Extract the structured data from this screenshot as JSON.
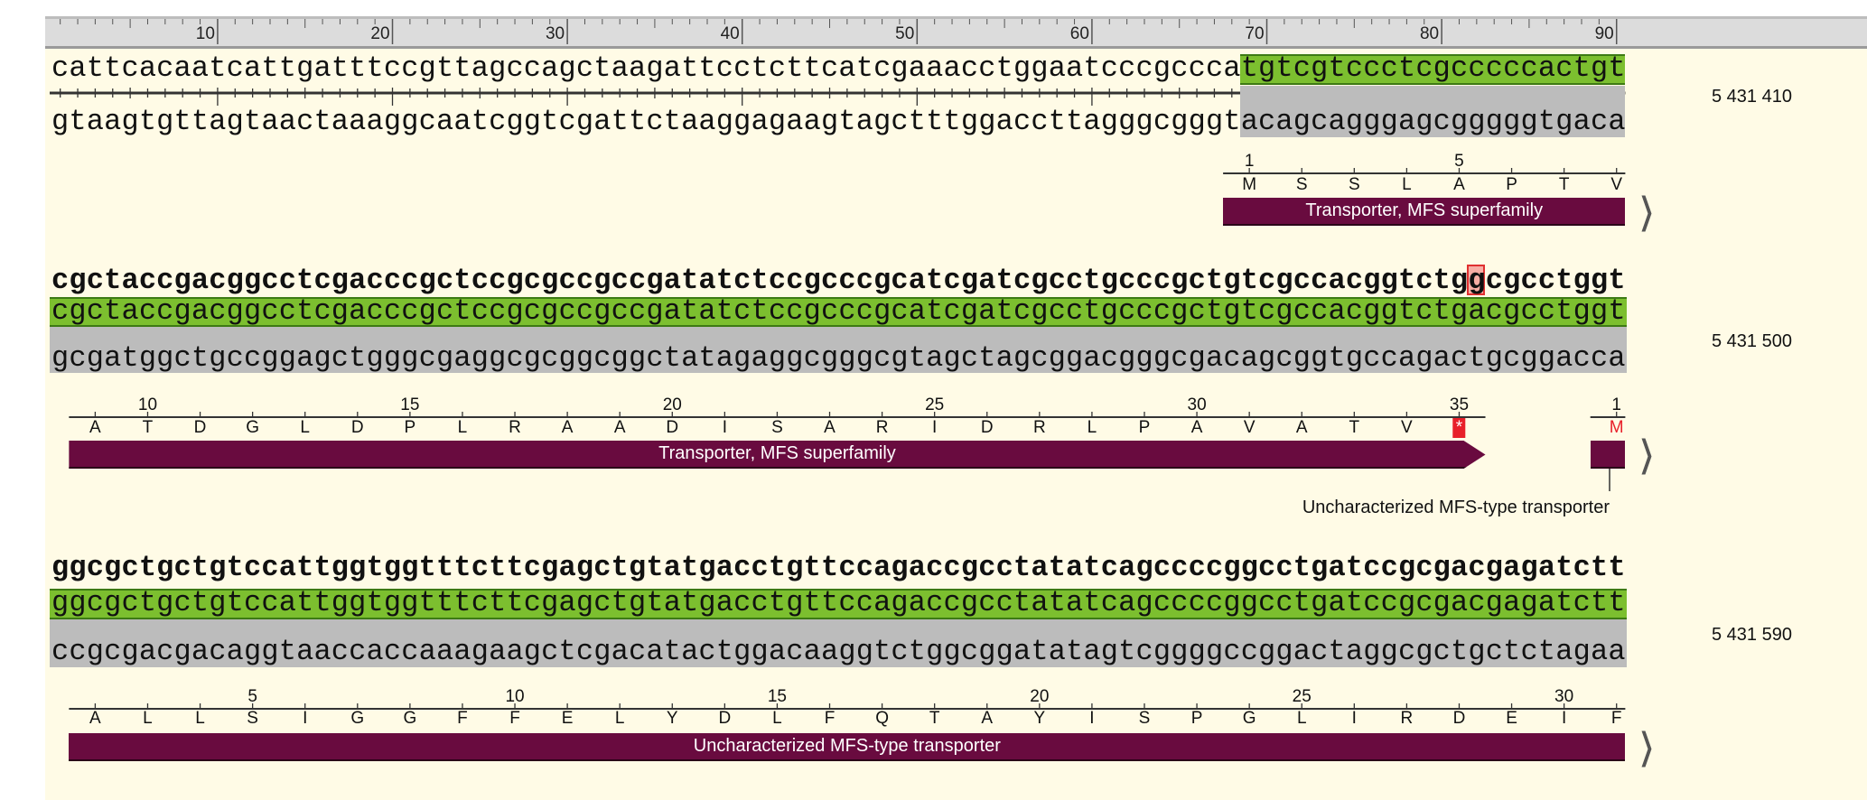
{
  "ruler": {
    "labels": [
      "10",
      "20",
      "30",
      "40",
      "50",
      "60",
      "70",
      "80",
      "90"
    ]
  },
  "colors": {
    "background": "#fffbe6",
    "aligned": "#7cbf2f",
    "reverse": "#bcbcbc",
    "feature": "#690b3f",
    "mismatch": "#f08080",
    "stop": "#e8202a"
  },
  "blocks": [
    {
      "top": "cattcacaatcattgatttccgttagccagctaagattcctcttcatcgaaacctggaatcccgcccatgtcgtccctcgcccccactgt",
      "aligned": "atgtcgtccctcgcccccactgt",
      "bottom": "gtaagtgttagtaactaaaggcaatcggtcgattctaaggagaagtagctttggaccttagggcgggtacagcagggagcgggggtgaca",
      "coord": "5 431 410",
      "tracks": [
        {
          "start_num": 1,
          "aa": [
            "M",
            "S",
            "S",
            "L",
            "A",
            "P",
            "T",
            "V"
          ],
          "feature": "Transporter, MFS superfamily"
        }
      ]
    },
    {
      "top": "cgctaccgacggcctcgacccgctccgcgccgccgatatctccgcccgcatcgatcgcctgcccgctgtcgccacggtctggcgcctggt",
      "aligned": "cgctaccgacggcctcgacccgctccgcgccgccgatatctccgcccgcatcgatcgcctgcccgctgtcgccacggtctgacgcctggt",
      "bottom": "gcgatggctgccggagctgggcgaggcgcggcggctatagaggcgggcgtagctagcggacgggcgacagcggtgccagactgcggacca",
      "coord": "5 431 500",
      "tracks": [
        {
          "start_num": 9,
          "aa": [
            "A",
            "T",
            "D",
            "G",
            "L",
            "D",
            "P",
            "L",
            "R",
            "A",
            "A",
            "D",
            "I",
            "S",
            "A",
            "R",
            "I",
            "D",
            "R",
            "L",
            "P",
            "A",
            "V",
            "A",
            "T",
            "V",
            "*"
          ],
          "feature": "Transporter, MFS superfamily"
        },
        {
          "start_num": 1,
          "aa": [
            "M"
          ],
          "feature": "Uncharacterized MFS-type transporter"
        }
      ]
    },
    {
      "top": "ggcgctgctgtccattggtggtttcttcgagctgtatgacctgttccagaccgcctatatcagccccggcctgatccgcgacgagatctt",
      "aligned": "ggcgctgctgtccattggtggtttcttcgagctgtatgacctgttccagaccgcctatatcagccccggcctgatccgcgacgagatctt",
      "bottom": "ccgcgacgacaggtaaccaccaaagaagctcgacatactggacaaggtctggcggatatagtcggggccggactaggcgctgctctagaa",
      "coord": "5 431 590",
      "tracks": [
        {
          "start_num": 2,
          "aa": [
            "A",
            "L",
            "L",
            "S",
            "I",
            "G",
            "G",
            "F",
            "F",
            "E",
            "L",
            "Y",
            "D",
            "L",
            "F",
            "Q",
            "T",
            "A",
            "Y",
            "I",
            "S",
            "P",
            "G",
            "L",
            "I",
            "R",
            "D",
            "E",
            "I",
            "F"
          ],
          "feature": "Uncharacterized MFS-type transporter"
        }
      ]
    }
  ]
}
